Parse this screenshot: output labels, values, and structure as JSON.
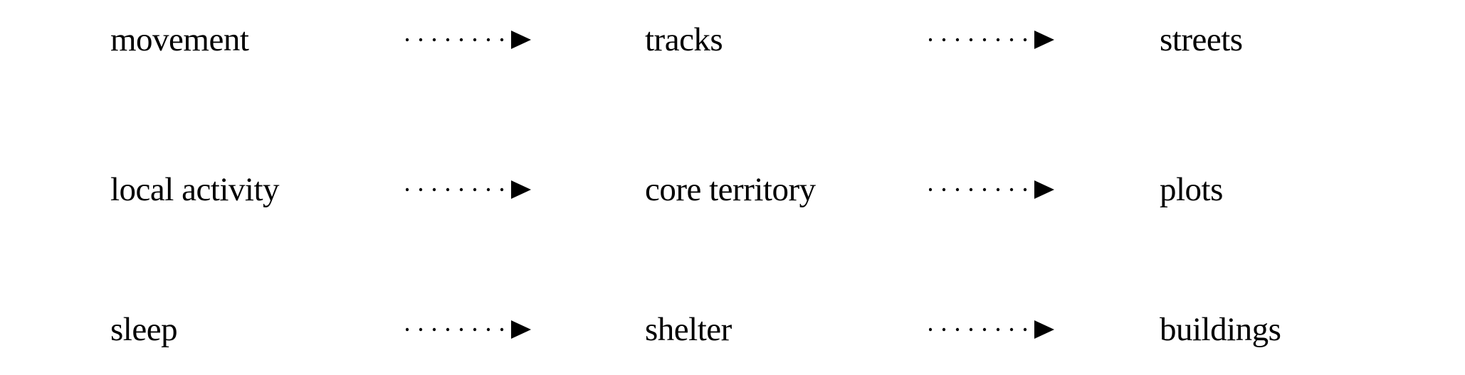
{
  "diagram": {
    "rows": [
      {
        "source": "movement",
        "middle": "tracks",
        "target": "streets"
      },
      {
        "source": "local activity",
        "middle": "core territory",
        "target": "plots"
      },
      {
        "source": "sleep",
        "middle": "shelter",
        "target": "buildings"
      }
    ],
    "connector": {
      "style": "dotted",
      "head": "filled-triangle",
      "color": "#000000"
    }
  }
}
